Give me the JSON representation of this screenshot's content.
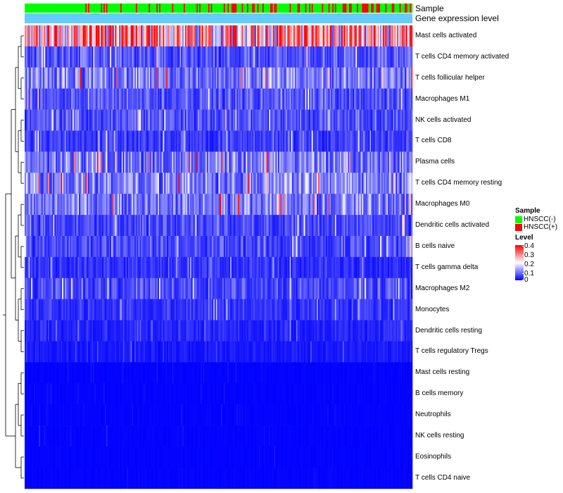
{
  "chart_data": {
    "type": "heatmap",
    "title": "",
    "annotation_tracks": [
      "Sample",
      "Gene expression level"
    ],
    "sample_groups": [
      "HNSCC(-)",
      "HNSCC(+)"
    ],
    "rows": [
      {
        "name": "Mast cells activated",
        "mean": 0.3
      },
      {
        "name": "T cells CD4 memory activated",
        "mean": 0.07
      },
      {
        "name": "T cells follicular helper",
        "mean": 0.1
      },
      {
        "name": "Macrophages M1",
        "mean": 0.07
      },
      {
        "name": "NK cells activated",
        "mean": 0.07
      },
      {
        "name": "T cells CD8",
        "mean": 0.05
      },
      {
        "name": "Plasma cells",
        "mean": 0.1
      },
      {
        "name": "T cells CD4 memory resting",
        "mean": 0.11
      },
      {
        "name": "Macrophages M0",
        "mean": 0.1
      },
      {
        "name": "Dendritic cells activated",
        "mean": 0.06
      },
      {
        "name": "B cells naive",
        "mean": 0.06
      },
      {
        "name": "T cells gamma delta",
        "mean": 0.04
      },
      {
        "name": "Macrophages M2",
        "mean": 0.06
      },
      {
        "name": "Monocytes",
        "mean": 0.04
      },
      {
        "name": "Dendritic cells resting",
        "mean": 0.03
      },
      {
        "name": "T cells regulatory  Tregs",
        "mean": 0.02
      },
      {
        "name": "Mast cells resting",
        "mean": 0.01
      },
      {
        "name": "B cells memory",
        "mean": 0.01
      },
      {
        "name": "Neutrophils",
        "mean": 0.01
      },
      {
        "name": "NK cells resting",
        "mean": 0.01
      },
      {
        "name": "Eosinophils",
        "mean": 0.005
      },
      {
        "name": "T cells CD4 naive",
        "mean": 0.005
      }
    ],
    "legend": {
      "sample_title": "Sample",
      "sample_items": [
        {
          "label": "HNSCC(-)",
          "color": "#00ff00"
        },
        {
          "label": "HNSCC(+)",
          "color": "#ff0000"
        }
      ],
      "level_title": "Level",
      "level_ticks": [
        "0.4",
        "0.3",
        "0.2",
        "0.1",
        "0"
      ],
      "level_range": [
        0,
        0.4
      ]
    },
    "colors": {
      "low": "#0000ff",
      "mid": "#ffffff",
      "high": "#ff0000",
      "expression_track": "#66ccff"
    }
  }
}
